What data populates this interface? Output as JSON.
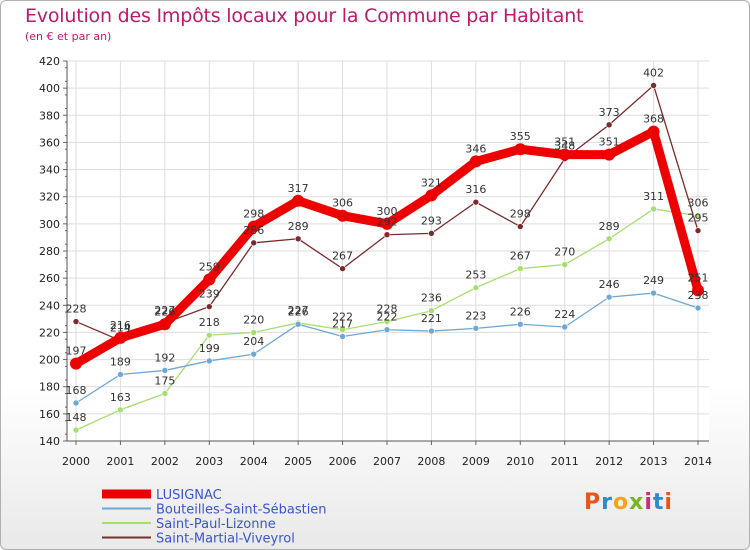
{
  "header": {
    "title": "Evolution des Impôts locaux pour la Commune par Habitant",
    "subtitle": "(en € et par an)"
  },
  "logo": {
    "text": "Proxiti",
    "colors": [
      "#e8551b",
      "#2a8bd0",
      "#f3a418",
      "#7ab51d",
      "#cf2a7c",
      "#2a8bd0",
      "#e8551b"
    ]
  },
  "chart_data": {
    "type": "line",
    "title": "Evolution des Impôts locaux pour la Commune par Habitant",
    "subtitle": "(en € et par an)",
    "x": [
      "2000",
      "2001",
      "2002",
      "2003",
      "2004",
      "2005",
      "2006",
      "2007",
      "2008",
      "2009",
      "2010",
      "2011",
      "2012",
      "2013",
      "2014"
    ],
    "yticks": [
      "140",
      "160",
      "180",
      "200",
      "220",
      "240",
      "260",
      "280",
      "300",
      "320",
      "340",
      "360",
      "380",
      "400",
      "420"
    ],
    "ylim": [
      140,
      420
    ],
    "grid": true,
    "legend_position": "bottom-left",
    "series": [
      {
        "name": "LUSIGNAC",
        "color": "#ee0000",
        "values": [
          197,
          216,
          226,
          259,
          298,
          317,
          306,
          300,
          321,
          346,
          355,
          351,
          351,
          368,
          251
        ]
      },
      {
        "name": "Bouteilles-Saint-Sébastien",
        "color": "#6fa7d6",
        "values": [
          168,
          189,
          192,
          199,
          204,
          226,
          217,
          222,
          221,
          223,
          226,
          224,
          246,
          249,
          238
        ]
      },
      {
        "name": "Saint-Paul-Lizonne",
        "color": "#a6de72",
        "values": [
          148,
          163,
          175,
          218,
          220,
          227,
          222,
          228,
          236,
          253,
          267,
          270,
          289,
          311,
          306
        ]
      },
      {
        "name": "Saint-Martial-Viveyrol",
        "color": "#7a2b2b",
        "values": [
          228,
          214,
          227,
          239,
          286,
          289,
          267,
          292,
          293,
          316,
          298,
          348,
          373,
          402,
          295
        ]
      }
    ]
  }
}
